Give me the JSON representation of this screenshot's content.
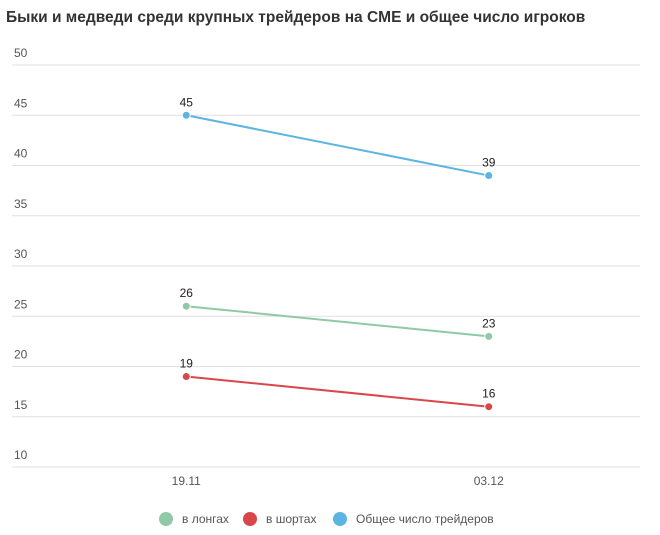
{
  "chart_data": {
    "type": "line",
    "title": "Быки и медведи среди крупных трейдеров на CME и общее число игроков",
    "categories": [
      "19.11",
      "03.12"
    ],
    "series": [
      {
        "name": "в лонгах",
        "color": "#8fc9a6",
        "values": [
          26,
          23
        ]
      },
      {
        "name": "в шортах",
        "color": "#d9474b",
        "values": [
          19,
          16
        ]
      },
      {
        "name": "Общее число трейдеров",
        "color": "#5bb5e0",
        "values": [
          45,
          39
        ]
      }
    ],
    "ylim": [
      10,
      50
    ],
    "yticks": [
      10,
      15,
      20,
      25,
      30,
      35,
      40,
      45,
      50
    ],
    "grid": true,
    "legend": "bottom"
  }
}
